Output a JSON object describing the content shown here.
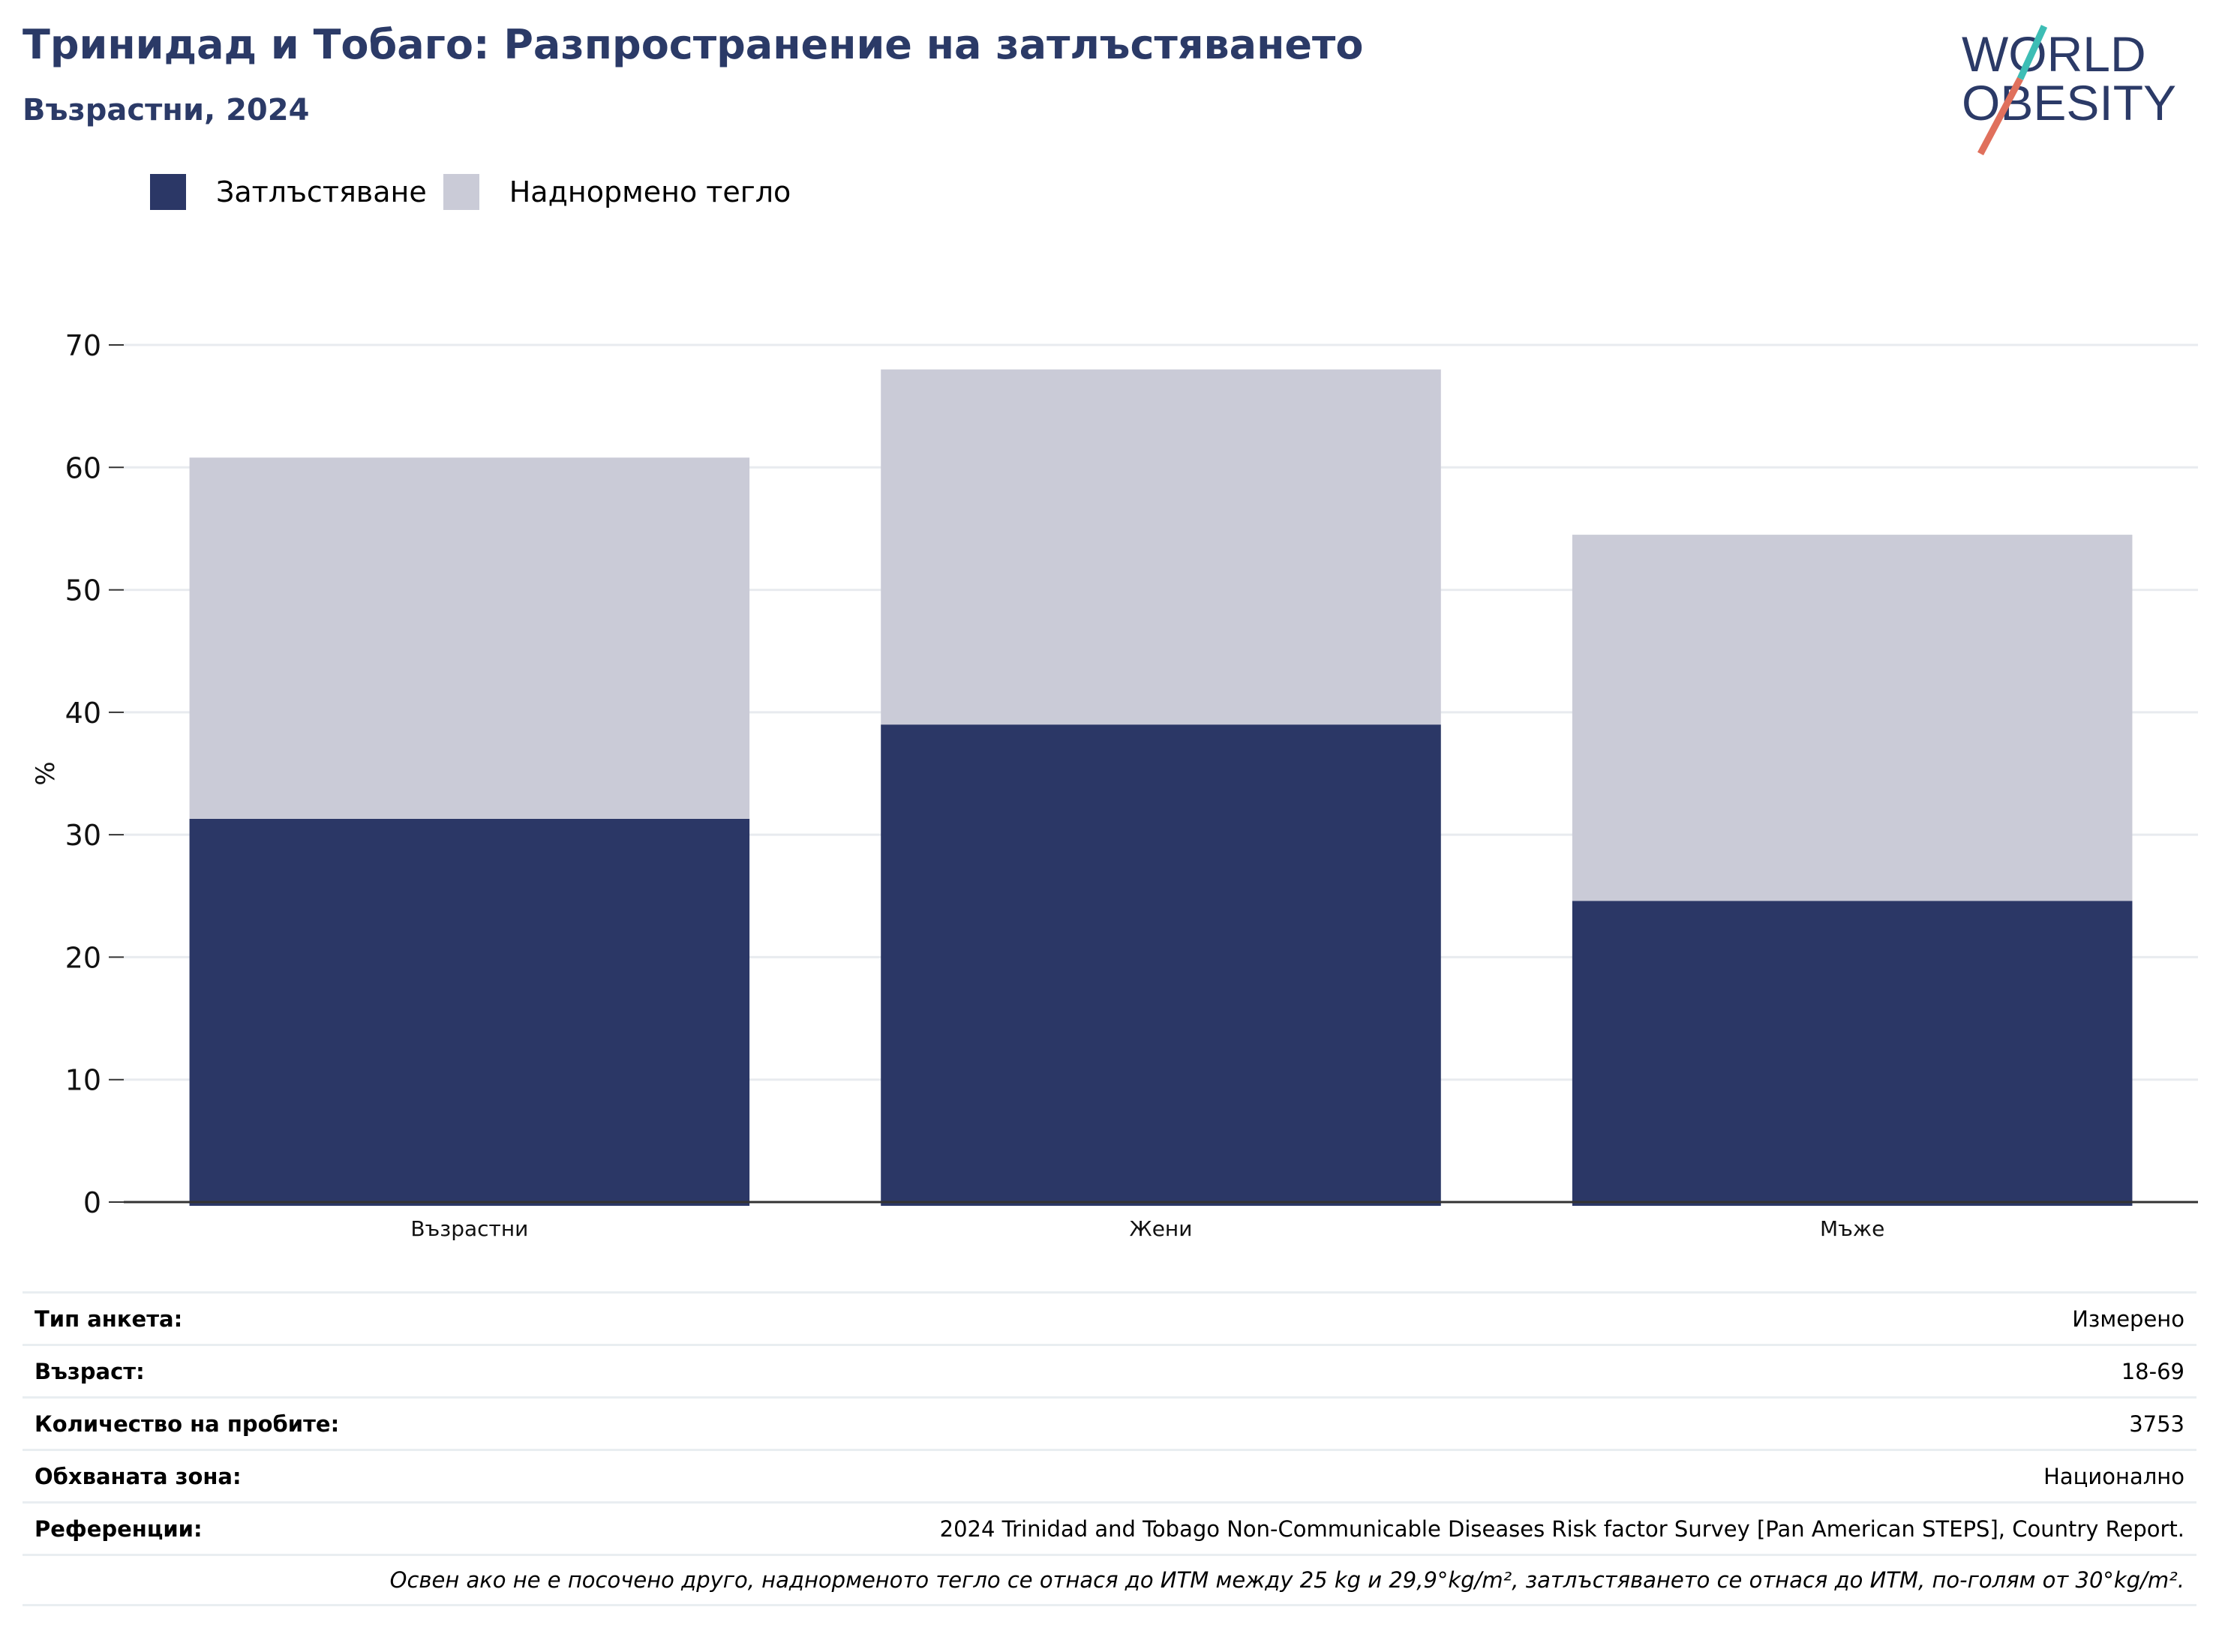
{
  "header": {
    "title": "Тринидад и Тобаго: Разпространение на затлъстяването",
    "subtitle": "Възрастни, 2024"
  },
  "logo": {
    "line1": "WORLD",
    "line2": "OBESITY",
    "colors": {
      "navy": "#2b3a67",
      "teal": "#3dbdb5",
      "coral": "#e0705c"
    }
  },
  "legend": {
    "items": [
      {
        "label": "Затлъстяване",
        "color": "#2b3766"
      },
      {
        "label": "Наднормено тегло",
        "color": "#cacbd7"
      }
    ]
  },
  "chart_data": {
    "type": "bar",
    "stacked": true,
    "categories": [
      "Възрастни",
      "Жени",
      "Мъже"
    ],
    "series": [
      {
        "name": "Затлъстяване",
        "color": "#2b3766",
        "values": [
          31.3,
          39.0,
          24.6
        ]
      },
      {
        "name": "Наднормено тегло",
        "color": "#cacbd7",
        "values": [
          29.5,
          29.0,
          29.9
        ]
      }
    ],
    "ylabel": "%",
    "xlabel": "",
    "ylim": [
      0,
      70
    ],
    "yticks": [
      0,
      10,
      20,
      30,
      40,
      50,
      60,
      70
    ],
    "grid": true,
    "legend_position": "top-left"
  },
  "info": {
    "rows": [
      {
        "key": "Тип анкета:",
        "value": "Измерено"
      },
      {
        "key": "Възраст:",
        "value": "18-69"
      },
      {
        "key": "Количество на пробите:",
        "value": "3753"
      },
      {
        "key": "Обхваната зона:",
        "value": "Национално"
      },
      {
        "key": "Референции:",
        "value": "2024 Trinidad and Tobago Non-Communicable Diseases Risk factor Survey [Pan American STEPS], Country Report."
      }
    ],
    "note": "Освен ако не е посочено друго, наднорменото тегло се отнася до ИТМ между 25 kg и 29,9°kg/m², затлъстяването се отнася до ИТМ, по-голям от 30°kg/m²."
  }
}
